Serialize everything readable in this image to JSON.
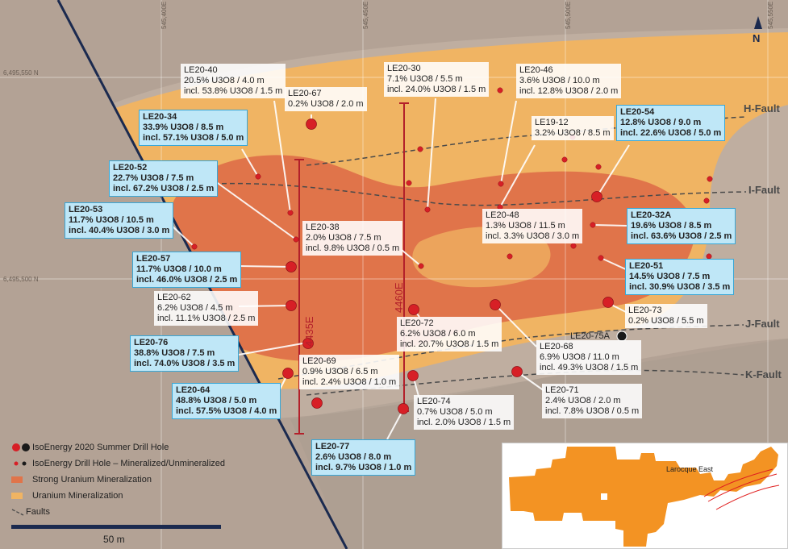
{
  "coords": {
    "e1": "545,400E",
    "e2": "545,450E",
    "e3": "545,500E",
    "e4": "545,550E",
    "n1": "6,495,550 N",
    "n2": "6,495,500 N"
  },
  "north": "N",
  "faults": {
    "h": "H-Fault",
    "i": "I-Fault",
    "j": "J-Fault",
    "k": "K-Fault"
  },
  "sections": {
    "s4435": "4435E",
    "s4460": "4460E"
  },
  "holes": {
    "le20_40": {
      "id": "LE20-40",
      "l1": "20.5% U3O8 / 4.0 m",
      "l2": "incl. 53.8% U3O8 / 1.5 m"
    },
    "le20_67": {
      "id": "LE20-67",
      "l1": "0.2% U3O8 / 2.0 m"
    },
    "le20_30": {
      "id": "LE20-30",
      "l1": "7.1% U3O8 / 5.5 m",
      "l2": "incl. 24.0% U3O8 / 1.5 m"
    },
    "le20_46": {
      "id": "LE20-46",
      "l1": "3.6% U3O8 / 10.0 m",
      "l2": "incl. 12.8% U3O8 / 2.0 m"
    },
    "le19_12": {
      "id": "LE19-12",
      "l1": "3.2% U3O8 / 8.5 m"
    },
    "le20_54": {
      "id": "LE20-54",
      "l1": "12.8% U3O8 / 9.0 m",
      "l2": "incl. 22.6% U3O8 / 5.0 m"
    },
    "le20_34": {
      "id": "LE20-34",
      "l1": "33.9% U3O8 / 8.5 m",
      "l2": "incl. 57.1% U3O8 / 5.0 m"
    },
    "le20_52": {
      "id": "LE20-52",
      "l1": "22.7% U3O8 / 7.5 m",
      "l2": "incl. 67.2% U3O8 / 2.5 m"
    },
    "le20_53": {
      "id": "LE20-53",
      "l1": "11.7% U3O8 / 10.5 m",
      "l2": "incl. 40.4% U3O8 / 3.0 m"
    },
    "le20_38": {
      "id": "LE20-38",
      "l1": "2.0% U3O8 / 7.5 m",
      "l2": "incl. 9.8% U3O8 / 0.5 m"
    },
    "le20_48": {
      "id": "LE20-48",
      "l1": "1.3% U3O8 / 11.5 m",
      "l2": "incl. 3.3% U3O8 / 3.0 m"
    },
    "le20_32a": {
      "id": "LE20-32A",
      "l1": "19.6% U3O8 / 8.5 m",
      "l2": "incl. 63.6% U3O8 / 2.5 m"
    },
    "le20_57": {
      "id": "LE20-57",
      "l1": "11.7% U3O8 / 10.0 m",
      "l2": "incl. 46.0% U3O8 / 2.5 m"
    },
    "le20_51": {
      "id": "LE20-51",
      "l1": "14.5% U3O8 / 7.5 m",
      "l2": "incl. 30.9% U3O8 / 3.5 m"
    },
    "le20_62": {
      "id": "LE20-62",
      "l1": "6.2% U3O8 / 4.5 m",
      "l2": "incl. 11.1% U3O8 / 2.5 m"
    },
    "le20_73": {
      "id": "LE20-73",
      "l1": "0.2% U3O8 / 5.5 m"
    },
    "le20_72": {
      "id": "LE20-72",
      "l1": "6.2% U3O8 / 6.0 m",
      "l2": "incl. 20.7% U3O8 / 1.5 m"
    },
    "le20_75a": {
      "id": "LE20-75A"
    },
    "le20_76": {
      "id": "LE20-76",
      "l1": "38.8% U3O8 / 7.5 m",
      "l2": "incl. 74.0% U3O8 / 3.5 m"
    },
    "le20_68": {
      "id": "LE20-68",
      "l1": "6.9% U3O8 / 11.0 m",
      "l2": "incl. 49.3% U3O8 / 1.5 m"
    },
    "le20_69": {
      "id": "LE20-69",
      "l1": "0.9% U3O8 / 6.5 m",
      "l2": "incl. 2.4% U3O8 / 1.0 m"
    },
    "le20_64": {
      "id": "LE20-64",
      "l1": "48.8% U3O8 / 5.0 m",
      "l2": "incl. 57.5% U3O8 / 4.0 m"
    },
    "le20_71": {
      "id": "LE20-71",
      "l1": "2.4% U3O8 / 2.0 m",
      "l2": "incl. 7.8% U3O8 / 0.5 m"
    },
    "le20_74": {
      "id": "LE20-74",
      "l1": "0.7% U3O8 / 5.0 m",
      "l2": "incl. 2.0% U3O8 / 1.5 m"
    },
    "le20_77": {
      "id": "LE20-77",
      "l1": "2.6% U3O8 / 8.0 m",
      "l2": "incl. 9.7% U3O8 / 1.0 m"
    }
  },
  "legend": {
    "summer": "IsoEnergy 2020 Summer Drill Hole",
    "drill": "IsoEnergy Drill Hole – Mineralized/Unmineralized",
    "strong": "Strong Uranium Mineralization",
    "mineral": "Uranium  Mineralization",
    "faults": "Faults"
  },
  "scale": "50 m",
  "inset_label": "Larocque East",
  "colors": {
    "background": "#b3a295",
    "mineral": "#f0b463",
    "strong": "#e0744a",
    "hole": "#d71f26",
    "section": "#b3202a",
    "callout_blue": "#bfe7f7",
    "inset_orange": "#f39323"
  }
}
